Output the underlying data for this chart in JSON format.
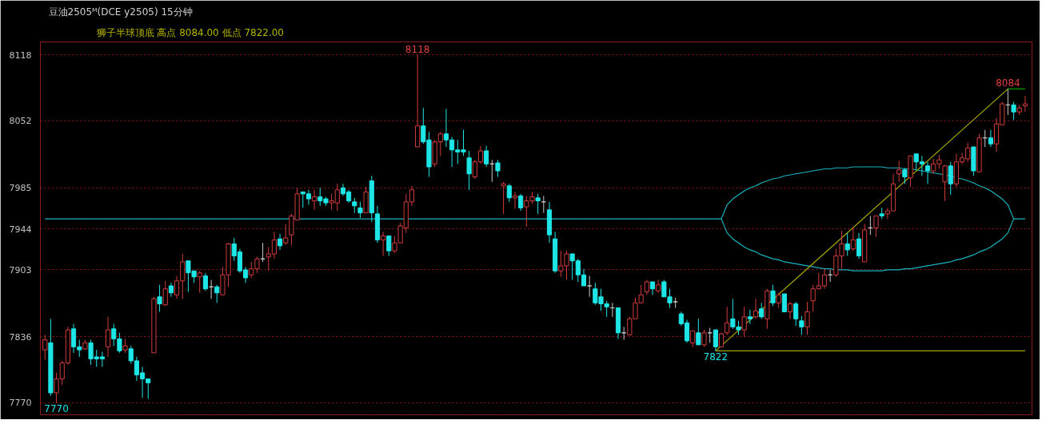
{
  "chart_data": {
    "type": "candlestick",
    "title": "豆油2505ᴹ(DCE y2505)  15分钟",
    "subtitle": "狮子半球顶底  高点 8084.00  低点 7822.00",
    "categories": [
      null,
      null,
      null,
      null,
      null,
      null,
      null,
      null,
      null,
      null,
      null,
      null,
      null,
      null,
      null,
      null,
      null,
      null,
      null,
      null,
      null,
      null,
      null,
      null,
      null,
      null,
      null,
      null,
      null,
      null,
      null,
      null,
      null,
      null,
      null,
      null,
      null,
      null,
      null,
      null,
      null,
      null,
      null,
      null,
      null,
      null,
      null,
      null,
      null,
      null,
      null,
      null,
      null,
      null,
      null,
      null,
      null,
      null,
      null,
      null,
      null,
      null,
      null,
      null,
      null,
      null,
      null,
      null,
      null,
      null,
      null,
      null,
      null,
      null,
      null,
      null,
      null,
      null,
      null,
      null,
      null,
      null,
      null,
      null,
      null,
      null,
      null,
      null,
      null,
      null,
      null,
      null,
      null,
      null,
      null,
      null,
      null,
      null,
      null,
      null,
      null,
      null,
      null,
      null,
      null,
      null,
      null,
      null,
      null,
      null,
      null,
      null,
      null,
      null,
      null,
      null,
      null,
      null,
      null,
      null,
      null,
      null,
      null,
      null,
      null,
      null,
      null,
      null,
      null,
      null,
      null,
      null,
      null,
      null,
      null,
      null,
      null,
      null,
      null,
      null,
      null,
      null,
      null,
      null,
      null,
      null,
      null,
      null,
      null,
      null,
      null,
      null,
      null,
      null,
      null,
      null,
      null,
      null,
      null,
      null,
      null,
      null,
      null,
      null,
      null,
      null,
      null,
      null,
      null,
      null,
      null,
      null
    ],
    "ohlc": [
      [
        7823,
        7838,
        7813,
        7833
      ],
      [
        7830,
        7854,
        7777,
        7780
      ],
      [
        7780,
        7800,
        7770,
        7794
      ],
      [
        7794,
        7812,
        7788,
        7810
      ],
      [
        7810,
        7846,
        7808,
        7843
      ],
      [
        7844,
        7849,
        7820,
        7826
      ],
      [
        7826,
        7833,
        7816,
        7823
      ],
      [
        7824,
        7833,
        7823,
        7830
      ],
      [
        7830,
        7833,
        7808,
        7814
      ],
      [
        7816,
        7823,
        7806,
        7814
      ],
      [
        7816,
        7821,
        7806,
        7814
      ],
      [
        7826,
        7856,
        7816,
        7843
      ],
      [
        7844,
        7849,
        7827,
        7834
      ],
      [
        7834,
        7840,
        7820,
        7822
      ],
      [
        7823,
        7834,
        7820,
        7827
      ],
      [
        7824,
        7827,
        7809,
        7812
      ],
      [
        7812,
        7816,
        7792,
        7798
      ],
      [
        7800,
        7806,
        7775,
        7794
      ],
      [
        7794,
        7794,
        7774,
        7790
      ],
      [
        7820,
        7876,
        7820,
        7874
      ],
      [
        7876,
        7888,
        7861,
        7869
      ],
      [
        7868,
        7892,
        7867,
        7884
      ],
      [
        7887,
        7890,
        7876,
        7880
      ],
      [
        7878,
        7897,
        7874,
        7892
      ],
      [
        7892,
        7919,
        7874,
        7911
      ],
      [
        7912,
        7912,
        7881,
        7900
      ],
      [
        7902,
        7902,
        7890,
        7896
      ],
      [
        7896,
        7902,
        7880,
        7900
      ],
      [
        7897,
        7900,
        7882,
        7884
      ],
      [
        7886,
        7893,
        7874,
        7886
      ],
      [
        7886,
        7888,
        7870,
        7880
      ],
      [
        7878,
        7906,
        7878,
        7898
      ],
      [
        7898,
        7930,
        7886,
        7929
      ],
      [
        7929,
        7935,
        7912,
        7917
      ],
      [
        7921,
        7924,
        7900,
        7902
      ],
      [
        7903,
        7906,
        7890,
        7895
      ],
      [
        7898,
        7911,
        7895,
        7904
      ],
      [
        7904,
        7916,
        7900,
        7914
      ],
      [
        7914,
        7930,
        7911,
        7914
      ],
      [
        7916,
        7926,
        7902,
        7919
      ],
      [
        7919,
        7941,
        7914,
        7933
      ],
      [
        7934,
        7939,
        7923,
        7927
      ],
      [
        7930,
        7949,
        7928,
        7935
      ],
      [
        7938,
        7959,
        7928,
        7957
      ],
      [
        7953,
        7985,
        7953,
        7979
      ],
      [
        7981,
        7981,
        7965,
        7979
      ],
      [
        7979,
        7983,
        7968,
        7974
      ],
      [
        7972,
        7983,
        7963,
        7976
      ],
      [
        7976,
        7985,
        7967,
        7972
      ],
      [
        7974,
        7976,
        7967,
        7970
      ],
      [
        7970,
        7979,
        7963,
        7972
      ],
      [
        7970,
        7989,
        7962,
        7983
      ],
      [
        7985,
        7989,
        7977,
        7979
      ],
      [
        7981,
        7983,
        7970,
        7972
      ],
      [
        7971,
        7975,
        7960,
        7967
      ],
      [
        7965,
        7971,
        7955,
        7960
      ],
      [
        7960,
        7986,
        7960,
        7981
      ],
      [
        7992,
        7997,
        7951,
        7960
      ],
      [
        7959,
        7967,
        7930,
        7933
      ],
      [
        7933,
        7941,
        7917,
        7937
      ],
      [
        7937,
        7937,
        7917,
        7922
      ],
      [
        7922,
        7937,
        7920,
        7930
      ],
      [
        7930,
        7950,
        7930,
        7947
      ],
      [
        7945,
        7979,
        7940,
        7971
      ],
      [
        7971,
        7987,
        7967,
        7983
      ],
      [
        8026,
        8118,
        8026,
        8047
      ],
      [
        8047,
        8065,
        8029,
        8031
      ],
      [
        8033,
        8041,
        7996,
        8006
      ],
      [
        8009,
        8033,
        8006,
        8031
      ],
      [
        8031,
        8041,
        8017,
        8039
      ],
      [
        8039,
        8064,
        8026,
        8033
      ],
      [
        8033,
        8036,
        8006,
        8023
      ],
      [
        8023,
        8033,
        8009,
        8021
      ],
      [
        8023,
        8043,
        8017,
        8021
      ],
      [
        8015,
        8022,
        7983,
        7999
      ],
      [
        7996,
        8013,
        7994,
        8011
      ],
      [
        8011,
        8027,
        8009,
        8022
      ],
      [
        8022,
        8027,
        8006,
        8009
      ],
      [
        8009,
        8013,
        7991,
        8009
      ],
      [
        8010,
        8013,
        7996,
        8002
      ],
      [
        7987,
        7991,
        7959,
        7989
      ],
      [
        7987,
        7989,
        7971,
        7975
      ],
      [
        7975,
        7981,
        7964,
        7977
      ],
      [
        7977,
        7979,
        7962,
        7965
      ],
      [
        7966,
        7977,
        7946,
        7972
      ],
      [
        7972,
        7981,
        7969,
        7976
      ],
      [
        7975,
        7979,
        7959,
        7972
      ],
      [
        7971,
        7977,
        7960,
        7971
      ],
      [
        7963,
        7971,
        7930,
        7938
      ],
      [
        7934,
        7941,
        7900,
        7902
      ],
      [
        7902,
        7922,
        7896,
        7907
      ],
      [
        7907,
        7922,
        7893,
        7919
      ],
      [
        7919,
        7919,
        7893,
        7912
      ],
      [
        7912,
        7914,
        7891,
        7898
      ],
      [
        7898,
        7904,
        7887,
        7887
      ],
      [
        7887,
        7897,
        7876,
        7887
      ],
      [
        7884,
        7890,
        7868,
        7870
      ],
      [
        7876,
        7884,
        7862,
        7869
      ],
      [
        7869,
        7872,
        7856,
        7866
      ],
      [
        7865,
        7870,
        7856,
        7865
      ],
      [
        7865,
        7865,
        7834,
        7840
      ],
      [
        7840,
        7846,
        7833,
        7840
      ],
      [
        7838,
        7856,
        7838,
        7854
      ],
      [
        7854,
        7875,
        7854,
        7870
      ],
      [
        7870,
        7888,
        7870,
        7878
      ],
      [
        7881,
        7893,
        7878,
        7891
      ],
      [
        7891,
        7891,
        7878,
        7884
      ],
      [
        7882,
        7893,
        7880,
        7888
      ],
      [
        7891,
        7893,
        7876,
        7876
      ],
      [
        7876,
        7884,
        7865,
        7870
      ],
      [
        7871,
        7875,
        7865,
        7871
      ],
      [
        7859,
        7861,
        7847,
        7849
      ],
      [
        7850,
        7853,
        7830,
        7832
      ],
      [
        7830,
        7842,
        7826,
        7842
      ],
      [
        7840,
        7854,
        7828,
        7828
      ],
      [
        7828,
        7843,
        7826,
        7840
      ],
      [
        7840,
        7845,
        7830,
        7840
      ],
      [
        7843,
        7843,
        7822,
        7826
      ],
      [
        7826,
        7840,
        7826,
        7839
      ],
      [
        7840,
        7866,
        7838,
        7850
      ],
      [
        7854,
        7874,
        7844,
        7846
      ],
      [
        7846,
        7852,
        7838,
        7843
      ],
      [
        7843,
        7866,
        7836,
        7856
      ],
      [
        7856,
        7863,
        7849,
        7854
      ],
      [
        7856,
        7874,
        7854,
        7862
      ],
      [
        7864,
        7870,
        7854,
        7856
      ],
      [
        7854,
        7884,
        7844,
        7882
      ],
      [
        7882,
        7888,
        7867,
        7870
      ],
      [
        7870,
        7880,
        7865,
        7878
      ],
      [
        7879,
        7879,
        7861,
        7861
      ],
      [
        7861,
        7871,
        7854,
        7869
      ],
      [
        7869,
        7871,
        7847,
        7854
      ],
      [
        7852,
        7857,
        7838,
        7846
      ],
      [
        7846,
        7871,
        7838,
        7861
      ],
      [
        7872,
        7888,
        7861,
        7884
      ],
      [
        7884,
        7900,
        7884,
        7887
      ],
      [
        7887,
        7904,
        7884,
        7898
      ],
      [
        7898,
        7903,
        7891,
        7898
      ],
      [
        7898,
        7924,
        7896,
        7917
      ],
      [
        7917,
        7942,
        7904,
        7929
      ],
      [
        7929,
        7940,
        7917,
        7923
      ],
      [
        7924,
        7946,
        7922,
        7933
      ],
      [
        7934,
        7940,
        7914,
        7917
      ],
      [
        7911,
        7949,
        7911,
        7943
      ],
      [
        7945,
        7957,
        7938,
        7945
      ],
      [
        7945,
        7957,
        7936,
        7957
      ],
      [
        7959,
        7965,
        7954,
        7957
      ],
      [
        7959,
        7965,
        7954,
        7962
      ],
      [
        7962,
        7999,
        7962,
        7989
      ],
      [
        7999,
        8012,
        7991,
        8003
      ],
      [
        8003,
        8005,
        7989,
        7996
      ],
      [
        7995,
        8017,
        7986,
        8017
      ],
      [
        8019,
        8019,
        8003,
        8011
      ],
      [
        8011,
        8017,
        7997,
        8009
      ],
      [
        8007,
        8011,
        7989,
        8002
      ],
      [
        8002,
        8014,
        7999,
        8009
      ],
      [
        8009,
        8018,
        8004,
        8013
      ],
      [
        7991,
        8008,
        7972,
        8007
      ],
      [
        8007,
        8011,
        7978,
        7989
      ],
      [
        7989,
        8019,
        7986,
        8011
      ],
      [
        8011,
        8020,
        8009,
        8015
      ],
      [
        8014,
        8030,
        8011,
        8025
      ],
      [
        8026,
        8026,
        7997,
        8002
      ],
      [
        8001,
        8039,
        8001,
        8035
      ],
      [
        8035,
        8043,
        8026,
        8035
      ],
      [
        8035,
        8043,
        8026,
        8029
      ],
      [
        8029,
        8055,
        8021,
        8049
      ],
      [
        8048,
        8071,
        8048,
        8069
      ],
      [
        8068,
        8084,
        8058,
        8068
      ],
      [
        8068,
        8071,
        8053,
        8061
      ],
      [
        8061,
        8068,
        8058,
        8065
      ],
      [
        8067,
        8077,
        8061,
        8069
      ]
    ],
    "colors": [
      "#d23c3c",
      "#1ee6e6",
      "#d23c3c",
      "#d23c3c",
      "#d23c3c",
      "#1ee6e6",
      "#1ee6e6",
      "#d23c3c",
      "#1ee6e6",
      "#1ee6e6",
      "#1ee6e6",
      "#d23c3c",
      "#1ee6e6",
      "#1ee6e6",
      "#d23c3c",
      "#1ee6e6",
      "#1ee6e6",
      "#1ee6e6",
      "#1ee6e6",
      "#d23c3c",
      "#1ee6e6",
      "#d23c3c",
      "#1ee6e6",
      "#d23c3c",
      "#d23c3c",
      "#1ee6e6",
      "#1ee6e6",
      "#d23c3c",
      "#1ee6e6",
      "#c8c8c8",
      "#1ee6e6",
      "#d23c3c",
      "#d23c3c",
      "#1ee6e6",
      "#1ee6e6",
      "#1ee6e6",
      "#d23c3c",
      "#d23c3c",
      "#c8c8c8",
      "#d23c3c",
      "#d23c3c",
      "#1ee6e6",
      "#d23c3c",
      "#d23c3c",
      "#d23c3c",
      "#1ee6e6",
      "#1ee6e6",
      "#d23c3c",
      "#1ee6e6",
      "#1ee6e6",
      "#d23c3c",
      "#d23c3c",
      "#1ee6e6",
      "#1ee6e6",
      "#1ee6e6",
      "#1ee6e6",
      "#d23c3c",
      "#1ee6e6",
      "#1ee6e6",
      "#d23c3c",
      "#1ee6e6",
      "#d23c3c",
      "#d23c3c",
      "#d23c3c",
      "#d23c3c",
      "#d23c3c",
      "#1ee6e6",
      "#1ee6e6",
      "#d23c3c",
      "#d23c3c",
      "#1ee6e6",
      "#1ee6e6",
      "#1ee6e6",
      "#1ee6e6",
      "#1ee6e6",
      "#d23c3c",
      "#d23c3c",
      "#1ee6e6",
      "#c8c8c8",
      "#1ee6e6",
      "#d23c3c",
      "#1ee6e6",
      "#d23c3c",
      "#1ee6e6",
      "#d23c3c",
      "#d23c3c",
      "#1ee6e6",
      "#c8c8c8",
      "#1ee6e6",
      "#1ee6e6",
      "#d23c3c",
      "#d23c3c",
      "#1ee6e6",
      "#1ee6e6",
      "#1ee6e6",
      "#c8c8c8",
      "#1ee6e6",
      "#1ee6e6",
      "#1ee6e6",
      "#c8c8c8",
      "#1ee6e6",
      "#c8c8c8",
      "#d23c3c",
      "#d23c3c",
      "#d23c3c",
      "#d23c3c",
      "#1ee6e6",
      "#d23c3c",
      "#1ee6e6",
      "#1ee6e6",
      "#c8c8c8",
      "#1ee6e6",
      "#1ee6e6",
      "#d23c3c",
      "#1ee6e6",
      "#d23c3c",
      "#c8c8c8",
      "#1ee6e6",
      "#d23c3c",
      "#d23c3c",
      "#1ee6e6",
      "#1ee6e6",
      "#d23c3c",
      "#1ee6e6",
      "#d23c3c",
      "#1ee6e6",
      "#d23c3c",
      "#1ee6e6",
      "#d23c3c",
      "#1ee6e6",
      "#d23c3c",
      "#1ee6e6",
      "#1ee6e6",
      "#d23c3c",
      "#d23c3c",
      "#d23c3c",
      "#d23c3c",
      "#c8c8c8",
      "#d23c3c",
      "#d23c3c",
      "#1ee6e6",
      "#d23c3c",
      "#1ee6e6",
      "#d23c3c",
      "#c8c8c8",
      "#d23c3c",
      "#1ee6e6",
      "#d23c3c",
      "#d23c3c",
      "#d23c3c",
      "#1ee6e6",
      "#d23c3c",
      "#1ee6e6",
      "#1ee6e6",
      "#1ee6e6",
      "#d23c3c",
      "#d23c3c",
      "#d23c3c",
      "#1ee6e6",
      "#d23c3c",
      "#d23c3c",
      "#d23c3c",
      "#1ee6e6",
      "#d23c3c",
      "#c8c8c8",
      "#1ee6e6",
      "#d23c3c",
      "#d23c3c",
      "#c8c8c8",
      "#1ee6e6",
      "#d23c3c",
      "#d23c3c"
    ],
    "series": [
      {
        "type": "line",
        "color": "#19b4be",
        "values": [
          7954,
          7954,
          7954,
          7954,
          7954,
          7954,
          7954,
          7954,
          7954,
          7954,
          7954,
          7954,
          7954,
          7954,
          7954,
          7954,
          7954,
          7954,
          7954,
          7954,
          7954,
          7954,
          7954,
          7954,
          7954,
          7954,
          7954,
          7954,
          7954,
          7954,
          7954,
          7954,
          7954,
          7954,
          7954,
          7954,
          7954,
          7954,
          7954,
          7954,
          7954,
          7954,
          7954,
          7954,
          7954,
          7954,
          7954,
          7954,
          7954,
          7954,
          7954,
          7954,
          7954,
          7954,
          7954,
          7954,
          7954,
          7954,
          7954,
          7954,
          7954,
          7954,
          7954,
          7954,
          7954,
          7954,
          7954,
          7954,
          7954,
          7954,
          7954,
          7954,
          7954,
          7954,
          7954,
          7954,
          7954,
          7954,
          7954,
          7954,
          7954,
          7954,
          7954,
          7954,
          7954,
          7954,
          7954,
          7954,
          7954,
          7954,
          7954,
          7954,
          7954,
          7954,
          7954,
          7954,
          7954,
          7954,
          7954,
          7954,
          7954,
          7954,
          7954,
          7954,
          7954,
          7954,
          7954,
          7954,
          7954,
          7954,
          7954,
          7954,
          7954,
          7954,
          7954,
          7954,
          7954,
          7954,
          7954,
          7968,
          7974,
          7978,
          7982,
          7985,
          7987,
          7990,
          7992,
          7994,
          7995,
          7997,
          7998,
          7999,
          8000,
          8001,
          8002,
          8003,
          8004,
          8004,
          8005,
          8005,
          8005,
          8006,
          8006,
          8006,
          8006,
          8006,
          8006,
          8005,
          8005,
          8005,
          8004,
          8004,
          8003,
          8002,
          8001,
          8000,
          7999,
          7998,
          7997,
          7995,
          7994,
          7992,
          7990,
          7987,
          7985,
          7982,
          7978,
          7974,
          7968,
          7954,
          7954,
          7954
        ]
      },
      {
        "type": "line",
        "color": "#19b4be",
        "values": [
          null,
          null,
          null,
          null,
          null,
          null,
          null,
          null,
          null,
          null,
          null,
          null,
          null,
          null,
          null,
          null,
          null,
          null,
          null,
          null,
          null,
          null,
          null,
          null,
          null,
          null,
          null,
          null,
          null,
          null,
          null,
          null,
          null,
          null,
          null,
          null,
          null,
          null,
          null,
          null,
          null,
          null,
          null,
          null,
          null,
          null,
          null,
          null,
          null,
          null,
          null,
          null,
          null,
          null,
          null,
          null,
          null,
          null,
          null,
          null,
          null,
          null,
          null,
          null,
          null,
          null,
          null,
          null,
          null,
          null,
          null,
          null,
          null,
          null,
          null,
          null,
          null,
          null,
          null,
          null,
          null,
          null,
          null,
          null,
          null,
          null,
          null,
          null,
          null,
          null,
          null,
          null,
          null,
          null,
          null,
          null,
          null,
          null,
          null,
          null,
          null,
          null,
          null,
          null,
          null,
          null,
          null,
          null,
          null,
          null,
          null,
          null,
          null,
          null,
          null,
          null,
          null,
          null,
          7954,
          7940,
          7934,
          7930,
          7926,
          7923,
          7921,
          7918,
          7916,
          7914,
          7913,
          7911,
          7910,
          7909,
          7908,
          7907,
          7906,
          7905,
          7904,
          7904,
          7903,
          7903,
          7903,
          7902,
          7902,
          7902,
          7902,
          7902,
          7902,
          7903,
          7903,
          7903,
          7904,
          7904,
          7905,
          7906,
          7907,
          7908,
          7909,
          7910,
          7911,
          7913,
          7914,
          7916,
          7918,
          7921,
          7923,
          7926,
          7930,
          7934,
          7940,
          7954,
          null,
          null
        ]
      },
      {
        "type": "line",
        "color": "#a8a800",
        "values": [
          null,
          null,
          null,
          null,
          null,
          null,
          null,
          null,
          null,
          null,
          null,
          null,
          null,
          null,
          null,
          null,
          null,
          null,
          null,
          null,
          null,
          null,
          null,
          null,
          null,
          null,
          null,
          null,
          null,
          null,
          null,
          null,
          null,
          null,
          null,
          null,
          null,
          null,
          null,
          null,
          null,
          null,
          null,
          null,
          null,
          null,
          null,
          null,
          null,
          null,
          null,
          null,
          null,
          null,
          null,
          null,
          null,
          null,
          null,
          null,
          null,
          null,
          null,
          null,
          null,
          null,
          null,
          null,
          null,
          null,
          null,
          null,
          null,
          null,
          null,
          null,
          null,
          null,
          null,
          null,
          null,
          null,
          null,
          null,
          null,
          null,
          null,
          null,
          null,
          null,
          null,
          null,
          null,
          null,
          null,
          null,
          null,
          null,
          null,
          null,
          null,
          null,
          null,
          null,
          null,
          null,
          null,
          null,
          null,
          null,
          null,
          null,
          null,
          null,
          null,
          null,
          null,
          7822,
          null,
          null,
          null,
          null,
          null,
          null,
          null,
          null,
          null,
          null,
          null,
          null,
          null,
          null,
          null,
          null,
          null,
          null,
          null,
          null,
          null,
          null,
          null,
          null,
          null,
          null,
          null,
          null,
          null,
          null,
          null,
          null,
          null,
          null,
          null,
          null,
          null,
          null,
          null,
          null,
          null,
          null,
          null,
          null,
          null,
          null,
          null,
          null,
          null,
          null,
          8084,
          null,
          null,
          null
        ]
      },
      {
        "type": "line",
        "color": "#a8a800",
        "values": [
          null,
          null,
          null,
          null,
          null,
          null,
          null,
          null,
          null,
          null,
          null,
          null,
          null,
          null,
          null,
          null,
          null,
          null,
          null,
          null,
          null,
          null,
          null,
          null,
          null,
          null,
          null,
          null,
          null,
          null,
          null,
          null,
          null,
          null,
          null,
          null,
          null,
          null,
          null,
          null,
          null,
          null,
          null,
          null,
          null,
          null,
          null,
          null,
          null,
          null,
          null,
          null,
          null,
          null,
          null,
          null,
          null,
          null,
          null,
          null,
          null,
          null,
          null,
          null,
          null,
          null,
          null,
          null,
          null,
          null,
          null,
          null,
          null,
          null,
          null,
          null,
          null,
          null,
          null,
          null,
          null,
          null,
          null,
          null,
          null,
          null,
          null,
          null,
          null,
          null,
          null,
          null,
          null,
          null,
          null,
          null,
          null,
          null,
          null,
          null,
          null,
          null,
          null,
          null,
          null,
          null,
          null,
          null,
          null,
          null,
          null,
          null,
          null,
          null,
          null,
          null,
          null,
          7822,
          null,
          null,
          null,
          null,
          null,
          null,
          null,
          null,
          null,
          null,
          null,
          null,
          null,
          null,
          null,
          null,
          null,
          null,
          null,
          null,
          null,
          null,
          null,
          null,
          null,
          null,
          null,
          null,
          null,
          null,
          null,
          null,
          null,
          null,
          null,
          null,
          null,
          null,
          null,
          null,
          null,
          null,
          null,
          null,
          null,
          null,
          null,
          null,
          null,
          null,
          null,
          null,
          null,
          7822
        ]
      },
      {
        "type": "line",
        "color": "#00a000",
        "values": [
          null,
          null,
          null,
          null,
          null,
          null,
          null,
          null,
          null,
          null,
          null,
          null,
          null,
          null,
          null,
          null,
          null,
          null,
          null,
          null,
          null,
          null,
          null,
          null,
          null,
          null,
          null,
          null,
          null,
          null,
          null,
          null,
          null,
          null,
          null,
          null,
          null,
          null,
          null,
          null,
          null,
          null,
          null,
          null,
          null,
          null,
          null,
          null,
          null,
          null,
          null,
          null,
          null,
          null,
          null,
          null,
          null,
          null,
          null,
          null,
          null,
          null,
          null,
          null,
          null,
          null,
          null,
          null,
          null,
          null,
          null,
          null,
          null,
          null,
          null,
          null,
          null,
          null,
          null,
          null,
          null,
          null,
          null,
          null,
          null,
          null,
          null,
          null,
          null,
          null,
          null,
          null,
          null,
          null,
          null,
          null,
          null,
          null,
          null,
          null,
          null,
          null,
          null,
          null,
          null,
          null,
          null,
          null,
          null,
          null,
          null,
          null,
          null,
          null,
          null,
          null,
          null,
          null,
          null,
          null,
          null,
          null,
          null,
          null,
          null,
          null,
          null,
          null,
          null,
          null,
          null,
          null,
          null,
          null,
          null,
          null,
          null,
          null,
          null,
          null,
          null,
          null,
          null,
          null,
          null,
          null,
          null,
          null,
          null,
          null,
          null,
          null,
          null,
          null,
          null,
          null,
          null,
          null,
          null,
          null,
          null,
          null,
          null,
          null,
          null,
          null,
          null,
          null,
          8084,
          null,
          null,
          8084
        ]
      }
    ],
    "annotations": [
      {
        "text": "8118",
        "y": 8118
      },
      {
        "text": "8084",
        "y": 8084
      },
      {
        "text": "7822",
        "y": 7822
      },
      {
        "text": "7770",
        "y": 7770
      }
    ],
    "ylim": [
      7758,
      8131
    ],
    "yticks": [
      7770,
      7836,
      7903,
      7944,
      7985,
      8052,
      8118
    ],
    "grid": "y",
    "tick_labels": "y",
    "marker": "none"
  }
}
